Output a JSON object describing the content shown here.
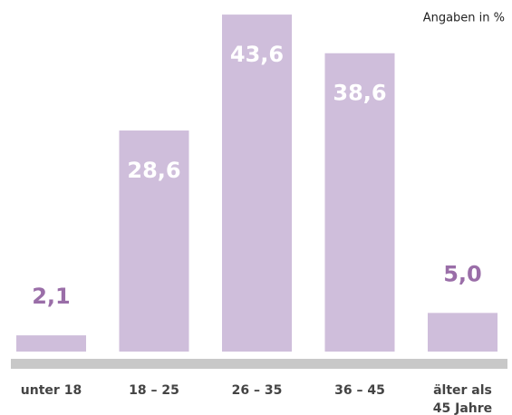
{
  "chart_data": {
    "type": "bar",
    "annotation": "Angaben in %",
    "categories": [
      "unter 18",
      "18 – 25",
      "26 – 35",
      "36 – 45",
      "älter als\n45 Jahre"
    ],
    "values": [
      2.1,
      28.6,
      43.6,
      38.6,
      5.0
    ],
    "value_labels": [
      "2,1",
      "28,6",
      "43,6",
      "38,6",
      "5,0"
    ],
    "color": "#cfbedb",
    "label_color": "#9a6ea8"
  }
}
